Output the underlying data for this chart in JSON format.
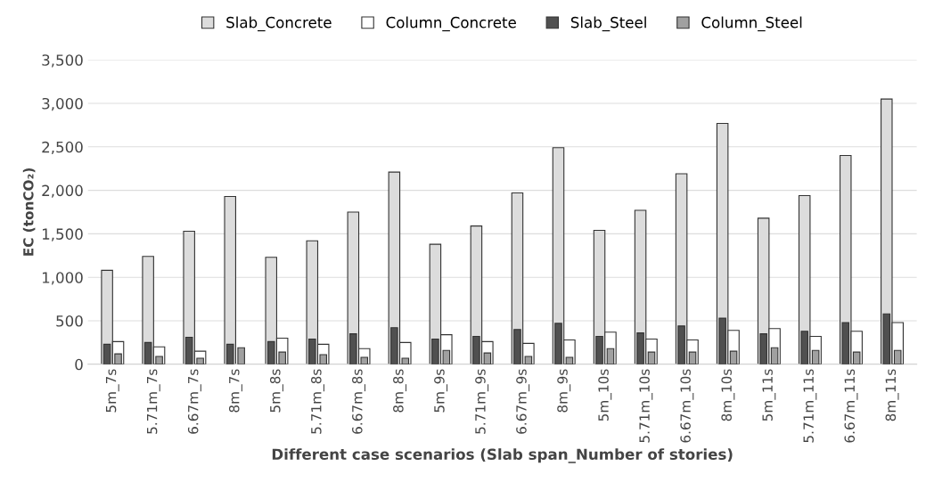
{
  "chart_data": {
    "type": "bar",
    "xlabel": "Different case scenarios (Slab span_Number of stories)",
    "ylabel": "EC (tonCO₂)",
    "categories": [
      "5m_7s",
      "5.71m_7s",
      "6.67m_7s",
      "8m_7s",
      "5m_8s",
      "5.71m_8s",
      "6.67m_8s",
      "8m_8s",
      "5m_9s",
      "5.71m_9s",
      "6.67m_9s",
      "8m_9s",
      "5m_10s",
      "5.71m_10s",
      "6.67m_10s",
      "8m_10s",
      "5m_11s",
      "5.71m_11s",
      "6.67m_11s",
      "8m_11s"
    ],
    "series": [
      {
        "name": "Slab_Concrete",
        "color": "#dcdcdc",
        "values": [
          1080,
          1240,
          1530,
          1930,
          1230,
          1420,
          1750,
          2210,
          1380,
          1590,
          1970,
          2490,
          1540,
          1770,
          2190,
          2770,
          1680,
          1940,
          2400,
          3050
        ]
      },
      {
        "name": "Column_Concrete",
        "color": "#ffffff",
        "values": [
          260,
          200,
          150,
          null,
          300,
          230,
          180,
          250,
          340,
          260,
          240,
          280,
          370,
          290,
          280,
          390,
          410,
          320,
          380,
          480
        ]
      },
      {
        "name": "Slab_Steel",
        "color": "#505050",
        "values": [
          230,
          250,
          310,
          230,
          260,
          290,
          350,
          420,
          290,
          320,
          400,
          470,
          320,
          360,
          440,
          530,
          350,
          380,
          480,
          580
        ]
      },
      {
        "name": "Column_Steel",
        "color": "#a0a0a0",
        "values": [
          120,
          90,
          70,
          190,
          140,
          110,
          80,
          70,
          160,
          130,
          90,
          80,
          180,
          140,
          140,
          150,
          190,
          160,
          140,
          160
        ]
      }
    ],
    "ylim": [
      0,
      3500
    ],
    "yticks": [
      {
        "value": 0,
        "label": "0"
      },
      {
        "value": 500,
        "label": "500"
      },
      {
        "value": 1000,
        "label": "1,000"
      },
      {
        "value": 1500,
        "label": "1,500"
      },
      {
        "value": 2000,
        "label": "2,000"
      },
      {
        "value": 2500,
        "label": "2,500"
      },
      {
        "value": 3000,
        "label": "3,000"
      },
      {
        "value": 3500,
        "label": "3,500"
      }
    ],
    "grid": "y",
    "legend": "top"
  }
}
